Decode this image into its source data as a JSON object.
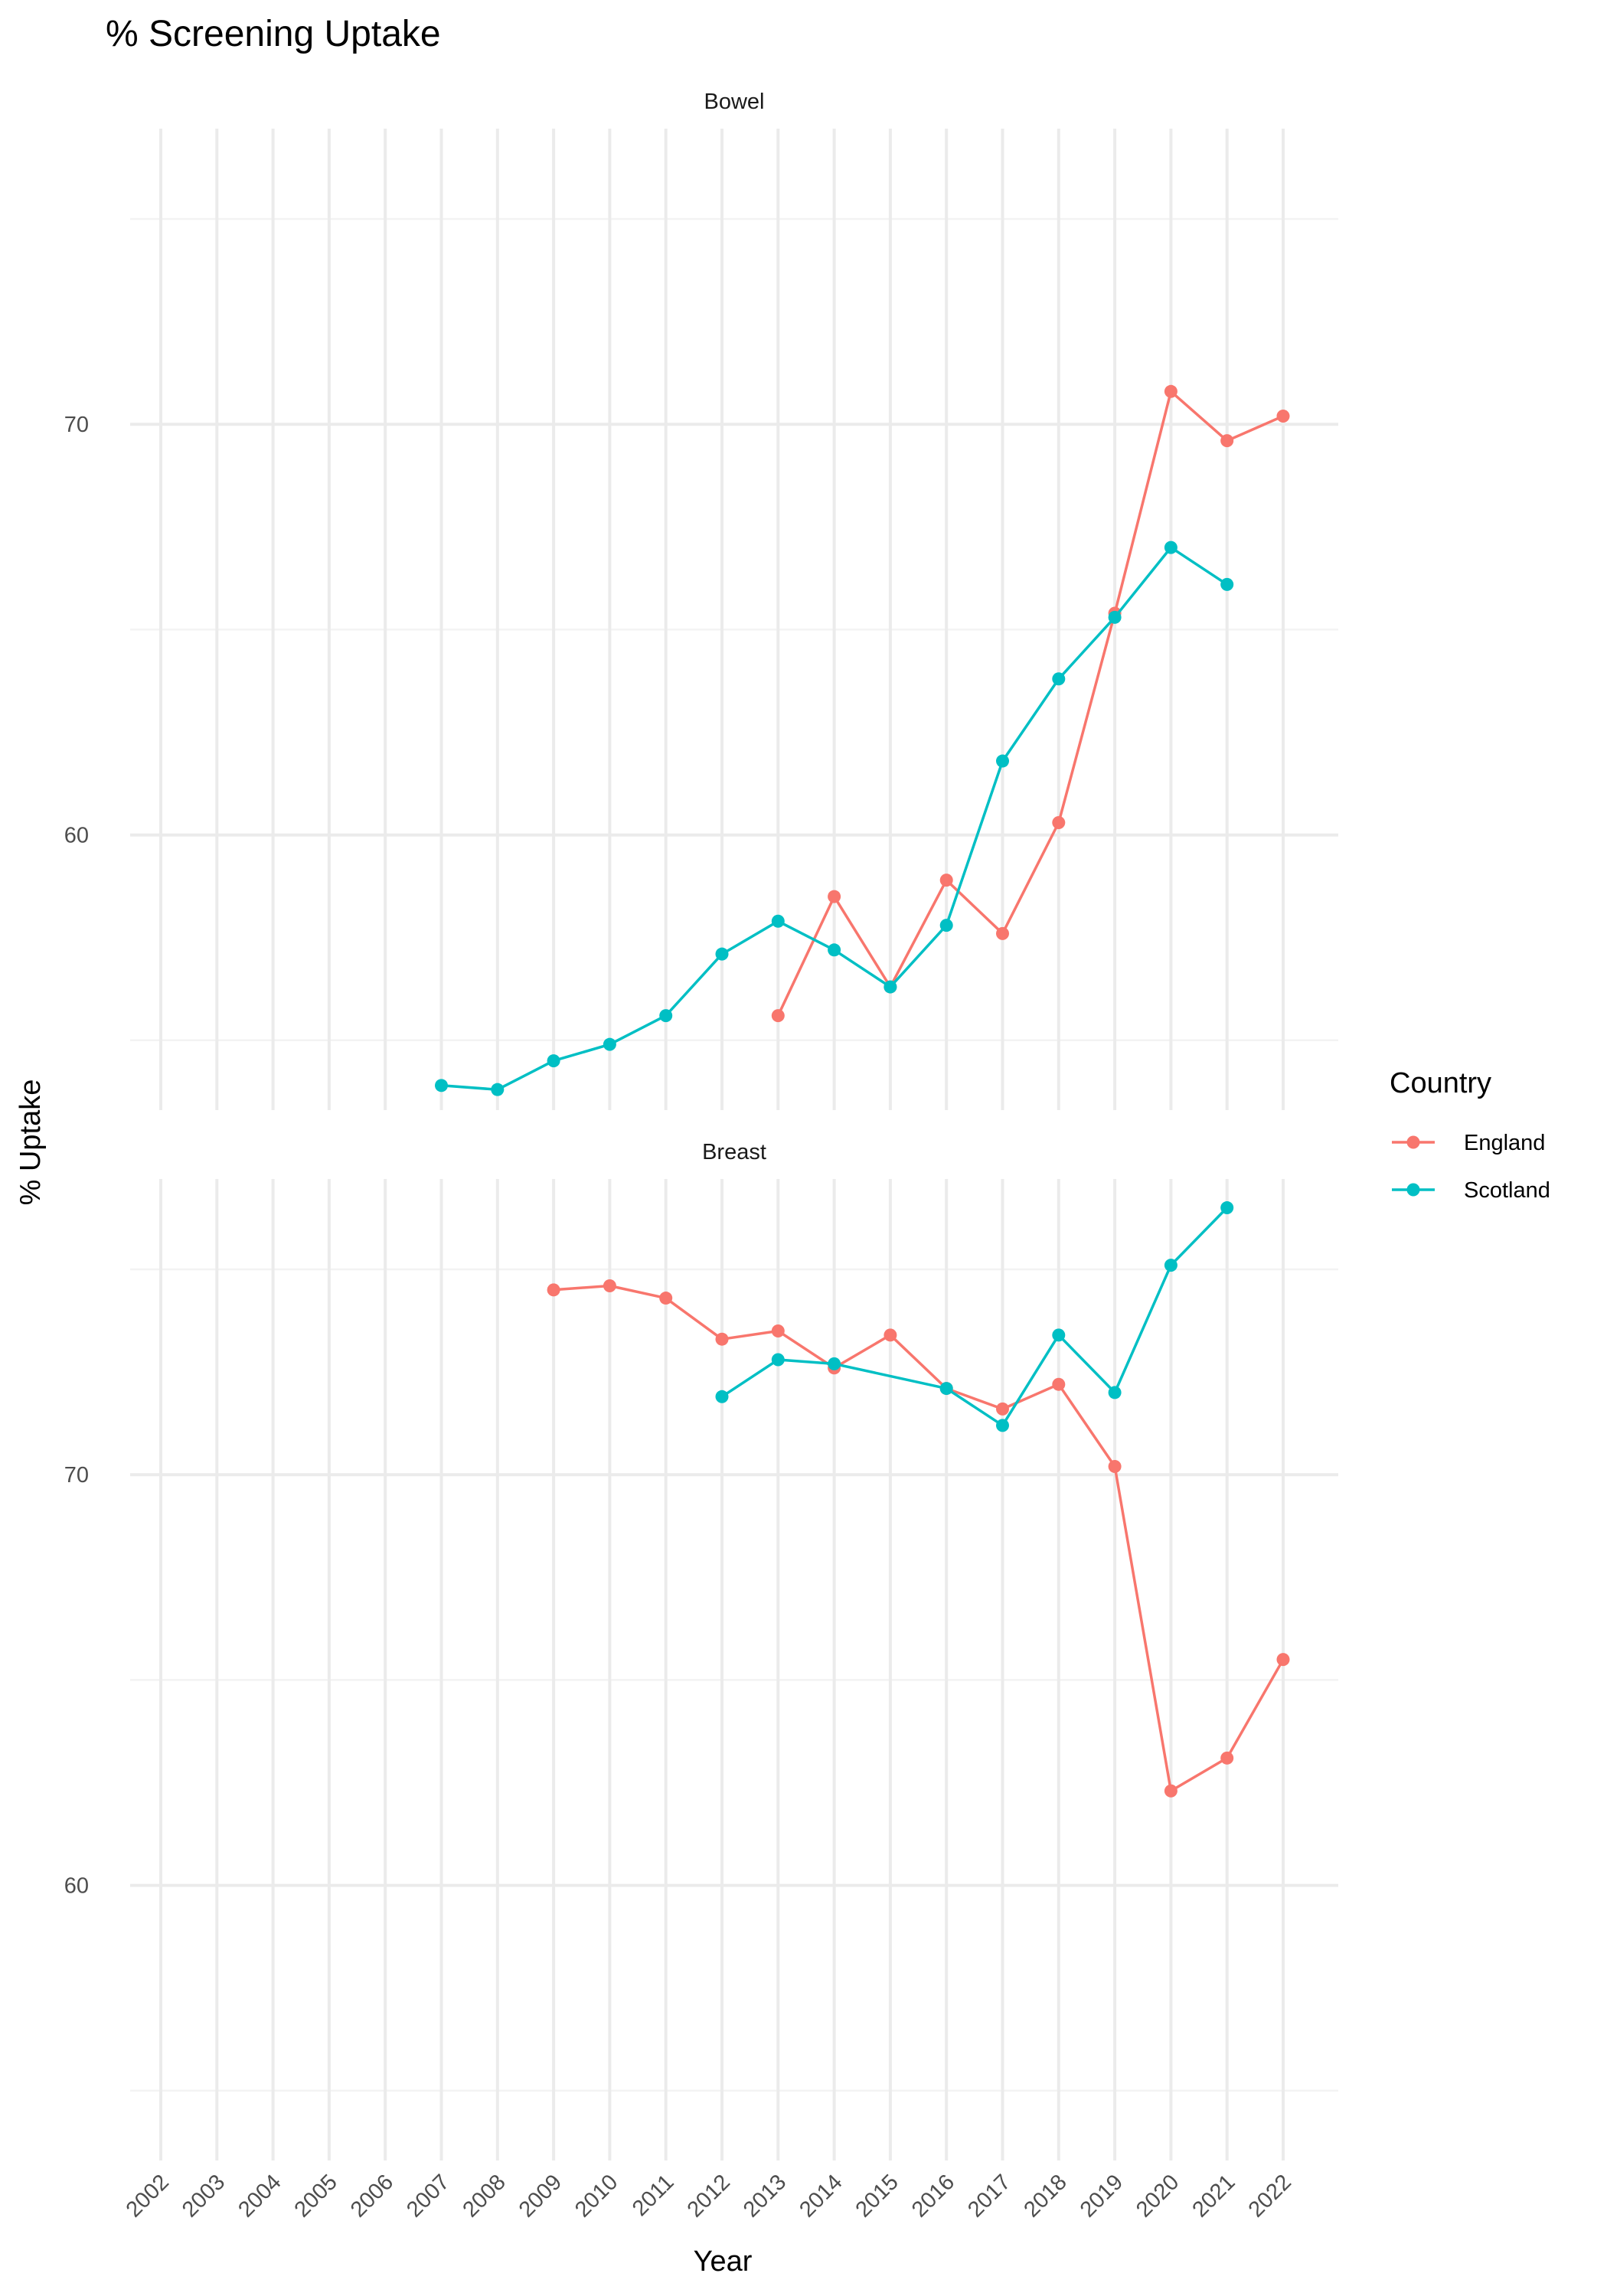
{
  "chart_data": {
    "type": "line",
    "title": "% Screening Uptake",
    "xlabel": "Year",
    "ylabel": "% Uptake",
    "legend": {
      "title": "Country",
      "position": "right",
      "entries": [
        "England",
        "Scotland"
      ]
    },
    "colors": {
      "England": "#F8766D",
      "Scotland": "#00BFC4"
    },
    "x": [
      2002,
      2003,
      2004,
      2005,
      2006,
      2007,
      2008,
      2009,
      2010,
      2011,
      2012,
      2013,
      2014,
      2015,
      2016,
      2017,
      2018,
      2019,
      2020,
      2021,
      2022
    ],
    "x_tick_labels": [
      "2002",
      "2003",
      "2004",
      "2005",
      "2006",
      "2007",
      "2008",
      "2009",
      "2010",
      "2011",
      "2012",
      "2013",
      "2014",
      "2015",
      "2016",
      "2017",
      "2018",
      "2019",
      "2020",
      "2021",
      "2022"
    ],
    "ylim": [
      53.3,
      77.2
    ],
    "y_ticks": [
      60,
      70
    ],
    "y_tick_labels": [
      "60",
      "70"
    ],
    "grid": true,
    "panels": [
      {
        "strip_label": "Bowel",
        "series": [
          {
            "name": "England",
            "points": [
              [
                2013,
                55.6
              ],
              [
                2014,
                58.5
              ],
              [
                2015,
                56.3
              ],
              [
                2016,
                58.9
              ],
              [
                2017,
                57.6
              ],
              [
                2018,
                60.3
              ],
              [
                2019,
                65.4
              ],
              [
                2020,
                70.8
              ],
              [
                2021,
                69.6
              ],
              [
                2022,
                70.2
              ]
            ]
          },
          {
            "name": "Scotland",
            "points": [
              [
                2007,
                53.9
              ],
              [
                2008,
                53.8
              ],
              [
                2009,
                54.5
              ],
              [
                2010,
                54.9
              ],
              [
                2011,
                55.6
              ],
              [
                2012,
                57.1
              ],
              [
                2013,
                57.9
              ],
              [
                2014,
                57.2
              ],
              [
                2015,
                56.3
              ],
              [
                2016,
                57.8
              ],
              [
                2017,
                61.8
              ],
              [
                2018,
                63.8
              ],
              [
                2019,
                65.3
              ],
              [
                2020,
                67.0
              ],
              [
                2021,
                66.1
              ]
            ]
          }
        ]
      },
      {
        "strip_label": "Breast",
        "series": [
          {
            "name": "England",
            "points": [
              [
                2009,
                74.5
              ],
              [
                2010,
                74.6
              ],
              [
                2011,
                74.3
              ],
              [
                2012,
                73.3
              ],
              [
                2013,
                73.5
              ],
              [
                2014,
                72.6
              ],
              [
                2015,
                73.4
              ],
              [
                2016,
                72.1
              ],
              [
                2017,
                71.6
              ],
              [
                2018,
                72.2
              ],
              [
                2019,
                70.2
              ],
              [
                2020,
                62.3
              ],
              [
                2021,
                63.1
              ],
              [
                2022,
                65.5
              ]
            ]
          },
          {
            "name": "Scotland",
            "points": [
              [
                2012,
                71.9
              ],
              [
                2013,
                72.8
              ],
              [
                2014,
                72.7
              ],
              [
                2016,
                72.1
              ],
              [
                2017,
                71.2
              ],
              [
                2018,
                73.4
              ],
              [
                2019,
                72.0
              ],
              [
                2020,
                75.1
              ],
              [
                2021,
                76.5
              ]
            ]
          }
        ]
      }
    ]
  }
}
